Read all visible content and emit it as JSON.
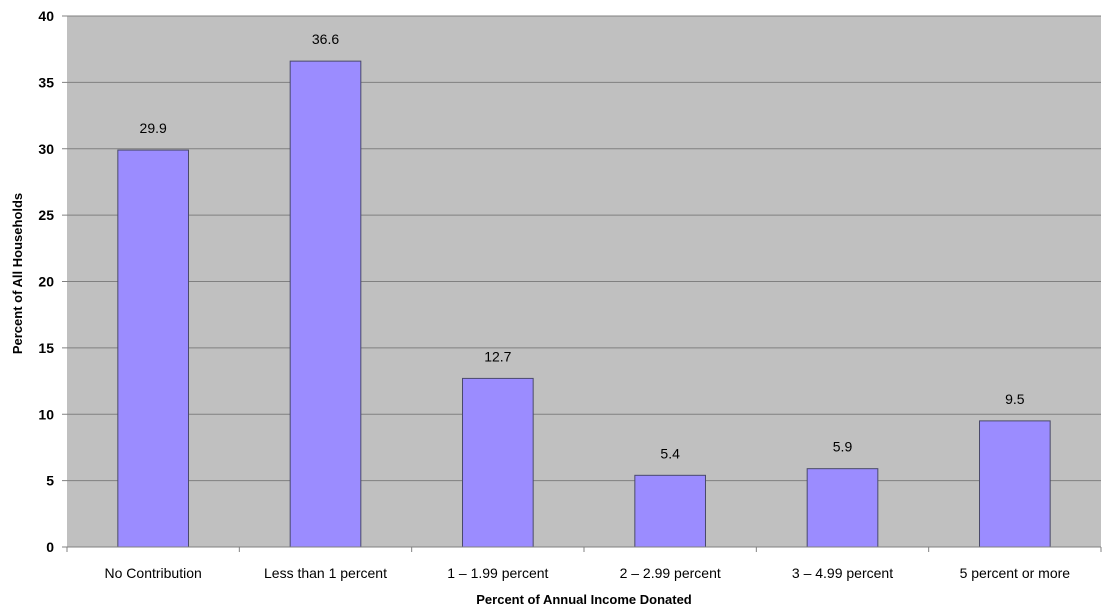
{
  "chart_data": {
    "type": "bar",
    "title": "",
    "xlabel": "Percent of Annual Income Donated",
    "ylabel": "Percent of All Households",
    "categories": [
      "No Contribution",
      "Less than 1 percent",
      "1 – 1.99 percent",
      "2 – 2.99 percent",
      "3 – 4.99 percent",
      "5 percent or more"
    ],
    "values": [
      29.9,
      36.6,
      12.7,
      5.4,
      5.9,
      9.5
    ],
    "data_labels": [
      "29.9",
      "36.6",
      "12.7",
      "5.4",
      "5.9",
      "9.5"
    ],
    "ylim": [
      0,
      40
    ],
    "yticks": [
      0,
      5,
      10,
      15,
      20,
      25,
      30,
      35,
      40
    ],
    "ytick_labels": [
      "0",
      "5",
      "10",
      "15",
      "20",
      "25",
      "30",
      "35",
      "40"
    ],
    "grid": true,
    "legend": "none",
    "colors": {
      "bar_fill": "#9b8cff",
      "bar_stroke": "#4a4a6a",
      "plot_background": "#c0c0c0",
      "gridline": "#808080"
    }
  }
}
